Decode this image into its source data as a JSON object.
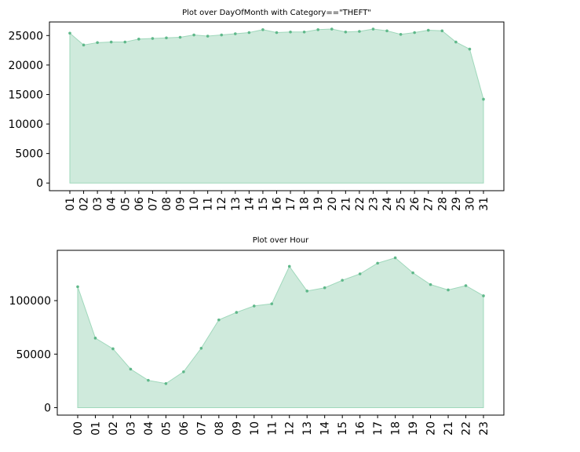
{
  "colors": {
    "fill": "#cfeadc",
    "line": "#9fd8bb",
    "marker": "#5fb88a",
    "axis": "#000000"
  },
  "chart_data": [
    {
      "type": "area",
      "title": "Plot over DayOfMonth with Category==\"THEFT\"",
      "xlabel": "",
      "ylabel": "",
      "categories": [
        "01",
        "02",
        "03",
        "04",
        "05",
        "06",
        "07",
        "08",
        "09",
        "10",
        "11",
        "12",
        "13",
        "14",
        "15",
        "16",
        "17",
        "18",
        "19",
        "20",
        "21",
        "22",
        "23",
        "24",
        "25",
        "26",
        "27",
        "28",
        "29",
        "30",
        "31"
      ],
      "values": [
        25400,
        23400,
        23800,
        23900,
        23900,
        24400,
        24500,
        24600,
        24700,
        25100,
        24900,
        25100,
        25300,
        25500,
        26000,
        25500,
        25600,
        25600,
        26000,
        26100,
        25600,
        25700,
        26100,
        25800,
        25200,
        25500,
        25900,
        25800,
        23900,
        22700,
        14200
      ],
      "yticks": [
        0,
        5000,
        10000,
        15000,
        20000,
        25000
      ],
      "ylim": [
        -1300,
        27300
      ],
      "grid": false,
      "markers": true
    },
    {
      "type": "area",
      "title": "Plot over Hour",
      "xlabel": "",
      "ylabel": "",
      "categories": [
        "00",
        "01",
        "02",
        "03",
        "04",
        "05",
        "06",
        "07",
        "08",
        "09",
        "10",
        "11",
        "12",
        "13",
        "14",
        "15",
        "16",
        "17",
        "18",
        "19",
        "20",
        "21",
        "22",
        "23"
      ],
      "values": [
        113000,
        65000,
        55000,
        36000,
        25500,
        22500,
        33500,
        55500,
        82000,
        89000,
        95000,
        97000,
        132000,
        109000,
        112000,
        119000,
        125000,
        135000,
        140000,
        126000,
        115000,
        110000,
        114000,
        104500
      ],
      "yticks": [
        0,
        50000,
        100000
      ],
      "ylim": [
        -7000,
        147000
      ],
      "grid": false,
      "markers": true
    }
  ]
}
